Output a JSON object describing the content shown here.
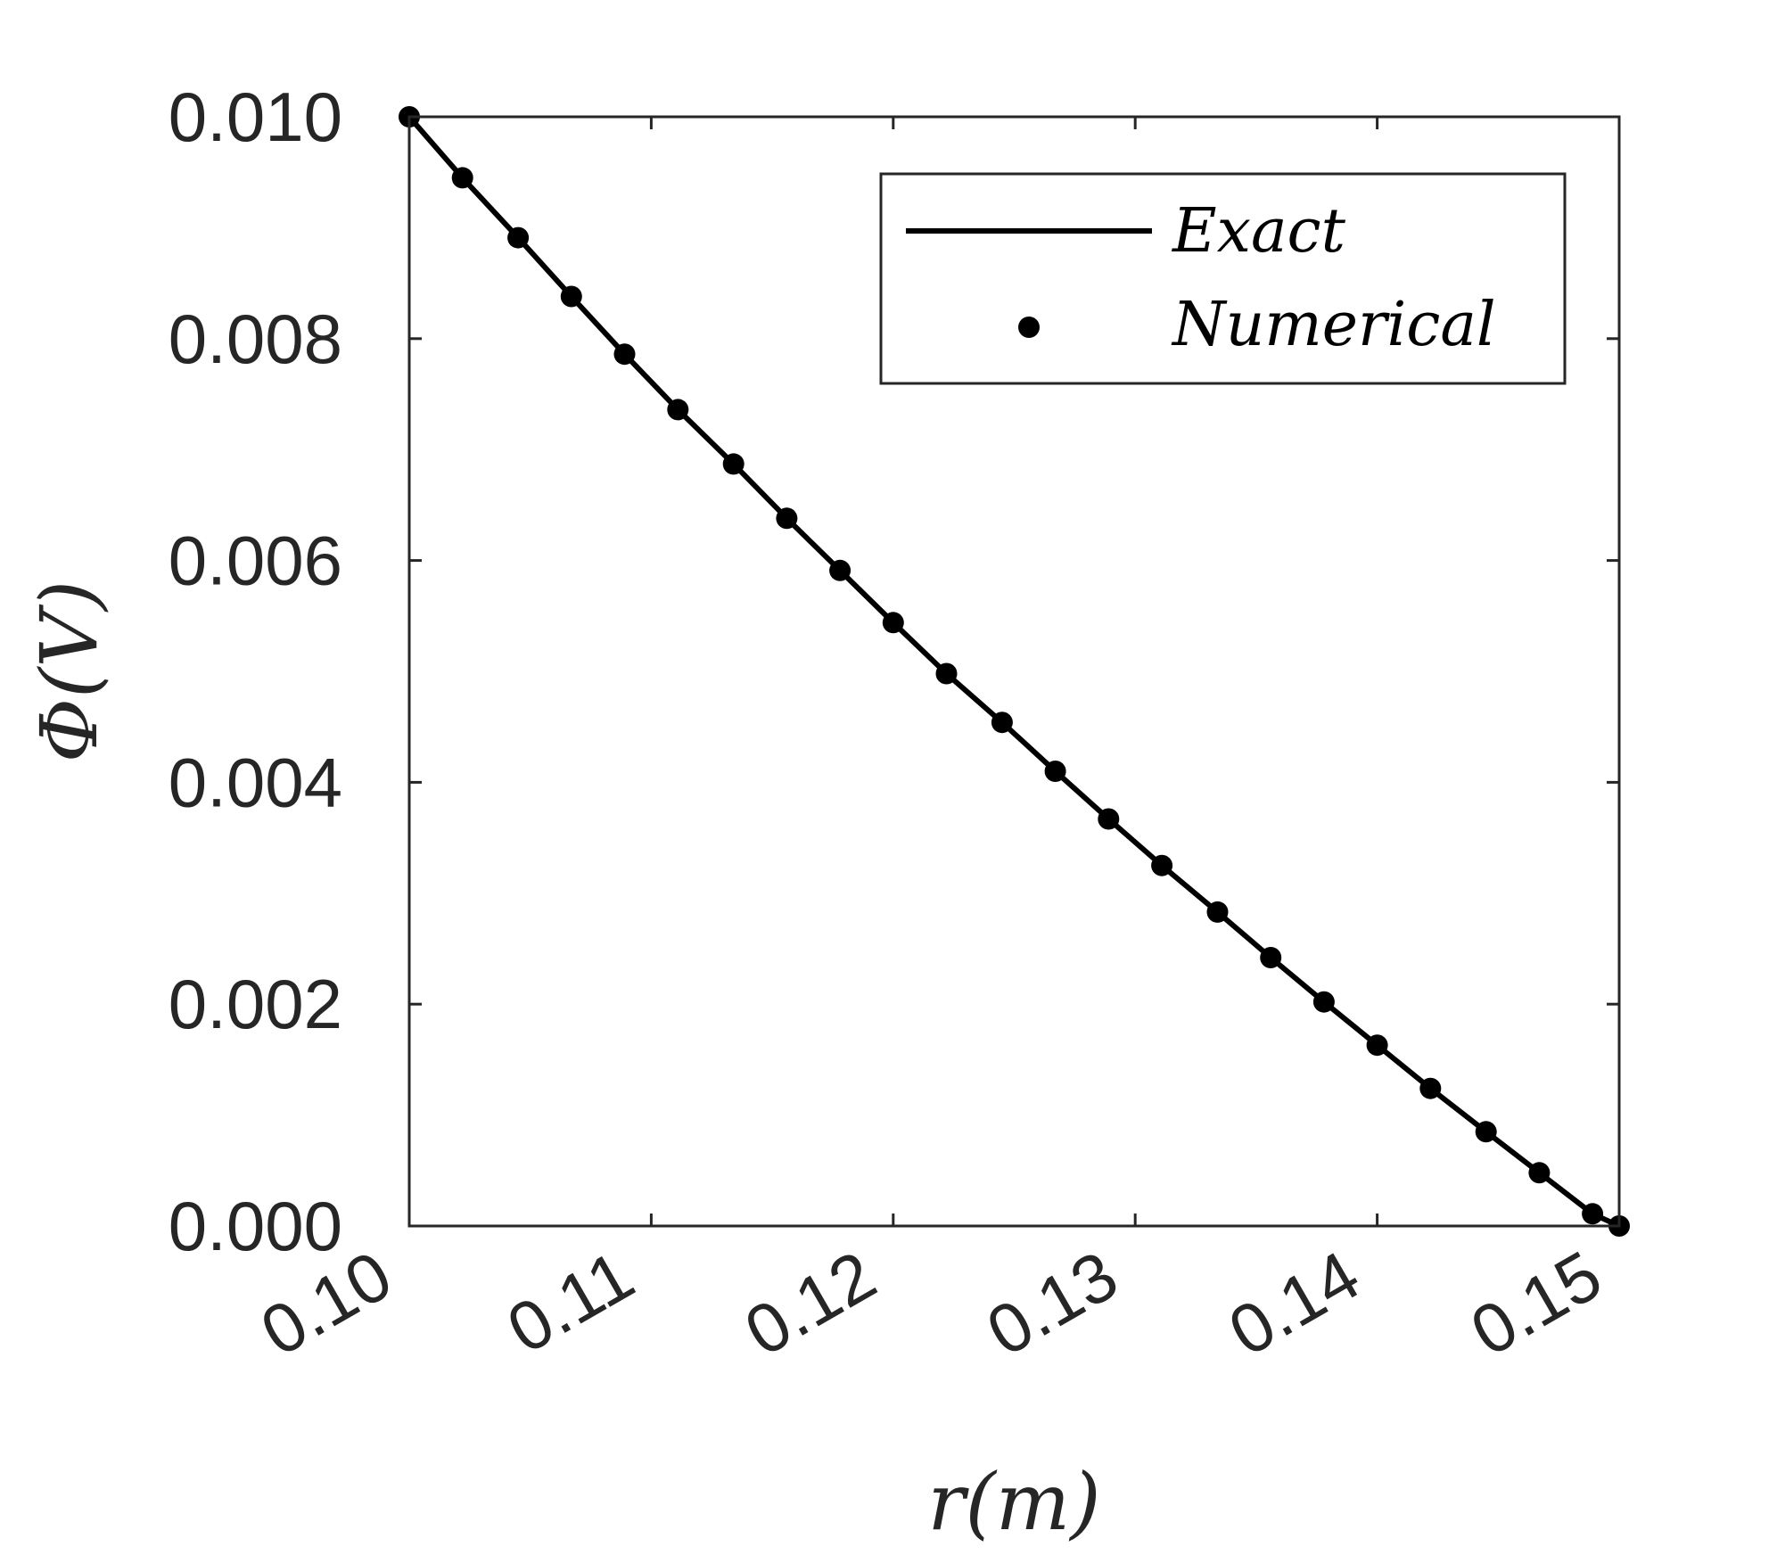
{
  "chart_data": {
    "type": "line",
    "title": "",
    "xlabel": "r(m)",
    "ylabel": "Φ(V)",
    "xlim": [
      0.1,
      0.15
    ],
    "ylim": [
      0.0,
      0.01
    ],
    "x_ticks": [
      "0.10",
      "0.11",
      "0.12",
      "0.13",
      "0.14",
      "0.15"
    ],
    "y_ticks": [
      "0.000",
      "0.002",
      "0.004",
      "0.006",
      "0.008",
      "0.010"
    ],
    "grid": false,
    "legend_position": "top-right",
    "series": [
      {
        "name": "Exact",
        "style": "line",
        "color": "#000000",
        "x": [
          0.1,
          0.1022,
          0.1045,
          0.1067,
          0.1089,
          0.1111,
          0.1134,
          0.1156,
          0.1178,
          0.12,
          0.1222,
          0.1245,
          0.1267,
          0.1289,
          0.1311,
          0.1334,
          0.1356,
          0.1378,
          0.14,
          0.1422,
          0.1445,
          0.1467,
          0.1489,
          0.15
        ],
        "y": [
          0.01,
          0.00945,
          0.00891,
          0.00838,
          0.00786,
          0.00736,
          0.00687,
          0.00638,
          0.00591,
          0.00544,
          0.00498,
          0.00454,
          0.0041,
          0.00367,
          0.00325,
          0.00283,
          0.00242,
          0.00202,
          0.00163,
          0.00124,
          0.00085,
          0.00048,
          0.00011,
          0.0
        ]
      },
      {
        "name": "Numerical",
        "style": "markers",
        "color": "#000000",
        "x": [
          0.1,
          0.1022,
          0.1045,
          0.1067,
          0.1089,
          0.1111,
          0.1134,
          0.1156,
          0.1178,
          0.12,
          0.1222,
          0.1245,
          0.1267,
          0.1289,
          0.1311,
          0.1334,
          0.1356,
          0.1378,
          0.14,
          0.1422,
          0.1445,
          0.1467,
          0.1489,
          0.15
        ],
        "y": [
          0.01,
          0.00945,
          0.00891,
          0.00838,
          0.00786,
          0.00736,
          0.00687,
          0.00638,
          0.00591,
          0.00544,
          0.00498,
          0.00454,
          0.0041,
          0.00367,
          0.00325,
          0.00283,
          0.00242,
          0.00202,
          0.00163,
          0.00124,
          0.00085,
          0.00048,
          0.00011,
          0.0
        ]
      }
    ]
  }
}
